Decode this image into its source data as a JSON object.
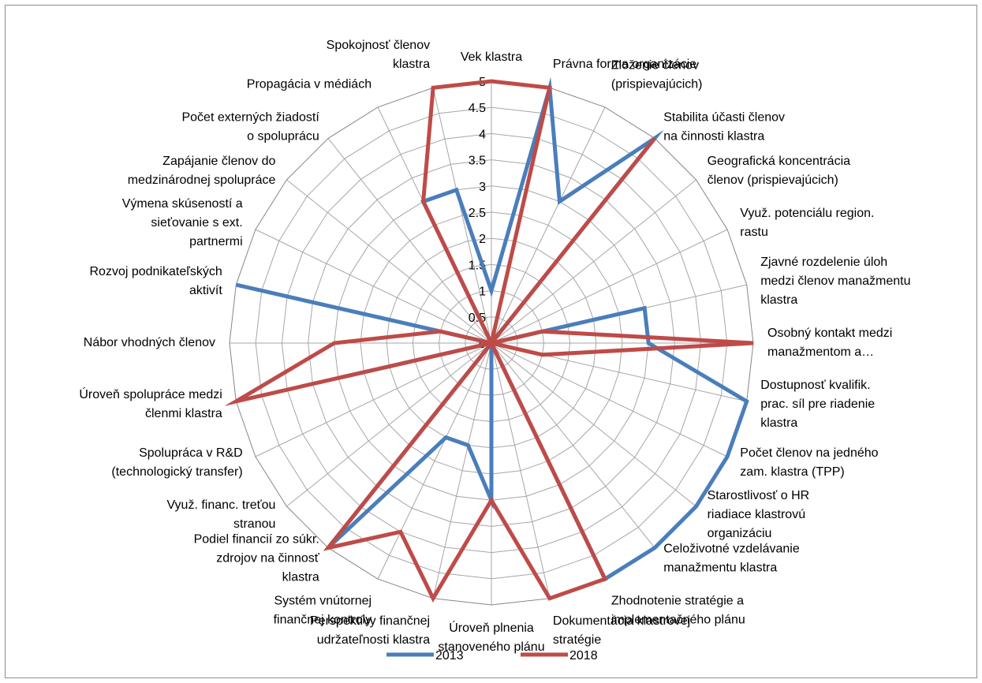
{
  "chart_data": {
    "type": "radar",
    "rmin": 0,
    "rmax": 5,
    "tick_step": 0.5,
    "ticks": [
      "0",
      "0.5",
      "1",
      "1.5",
      "2",
      "2.5",
      "3",
      "3.5",
      "4",
      "4.5",
      "5"
    ],
    "grid": true,
    "legend_position": "bottom",
    "categories": [
      "Vek klastra",
      "Právna forma organizácie",
      "Zloženie členov (prispievajúcich)",
      "Stabilita účasti členov na činnosti klastra",
      "Geografická koncentrácia členov (prispievajúcich)",
      "Využ. potenciálu region. rastu",
      "Zjavné rozdelenie úloh medzi členov manažmentu klastra",
      "Osobný kontakt medzi manažmentom a…",
      "Dostupnosť kvalifik. prac. síl pre riadenie klastra",
      "Počet členov na jedného zam. klastra (TPP)",
      "Starostlivosť o HR riadiace klastrovú organizáciu",
      "Celoživotné vzdelávanie manažmentu klastra",
      "Zhodnotenie stratégie a implementačného plánu",
      "Dokumentácia klastrovej stratégie",
      "Úroveň plnenia stanoveného plánu",
      "Perspektívy finančnej udržateľnosti klastra",
      "Systém vnútornej finančnej kontroly",
      "Podiel financií zo súkr. zdrojov na činnosť klastra",
      "Využ. financ. treťou stranou",
      "Spolupráca v R&D (technologický transfer)",
      "Úroveň spolupráce medzi členmi klastra",
      "Nábor vhodných členov",
      "Rozvoj podnikateľských aktivít",
      "Výmena skúseností a sieťovanie s ext. partnermi",
      "Zapájanie členov do medzinárodnej spolupráce",
      "Počet externých žiadostí o spoluprácu",
      "Propagácia v médiách",
      "Spokojnosť členov klastra"
    ],
    "series": [
      {
        "name": "2013",
        "color": "#4a7ebb",
        "values": [
          1,
          5,
          3,
          5,
          0,
          0,
          3,
          3,
          5,
          5,
          5,
          5,
          5,
          0,
          3,
          2,
          2,
          5,
          0,
          0,
          3,
          0,
          5,
          0,
          0,
          0,
          3,
          3
        ]
      },
      {
        "name": "2018",
        "color": "#be4b48",
        "values": [
          5,
          5,
          0,
          5,
          0,
          0,
          1,
          5,
          1,
          0,
          0,
          0,
          5,
          5,
          3,
          5,
          4,
          5,
          0,
          0,
          5,
          3,
          1,
          0,
          0,
          0,
          3,
          5
        ]
      }
    ]
  }
}
